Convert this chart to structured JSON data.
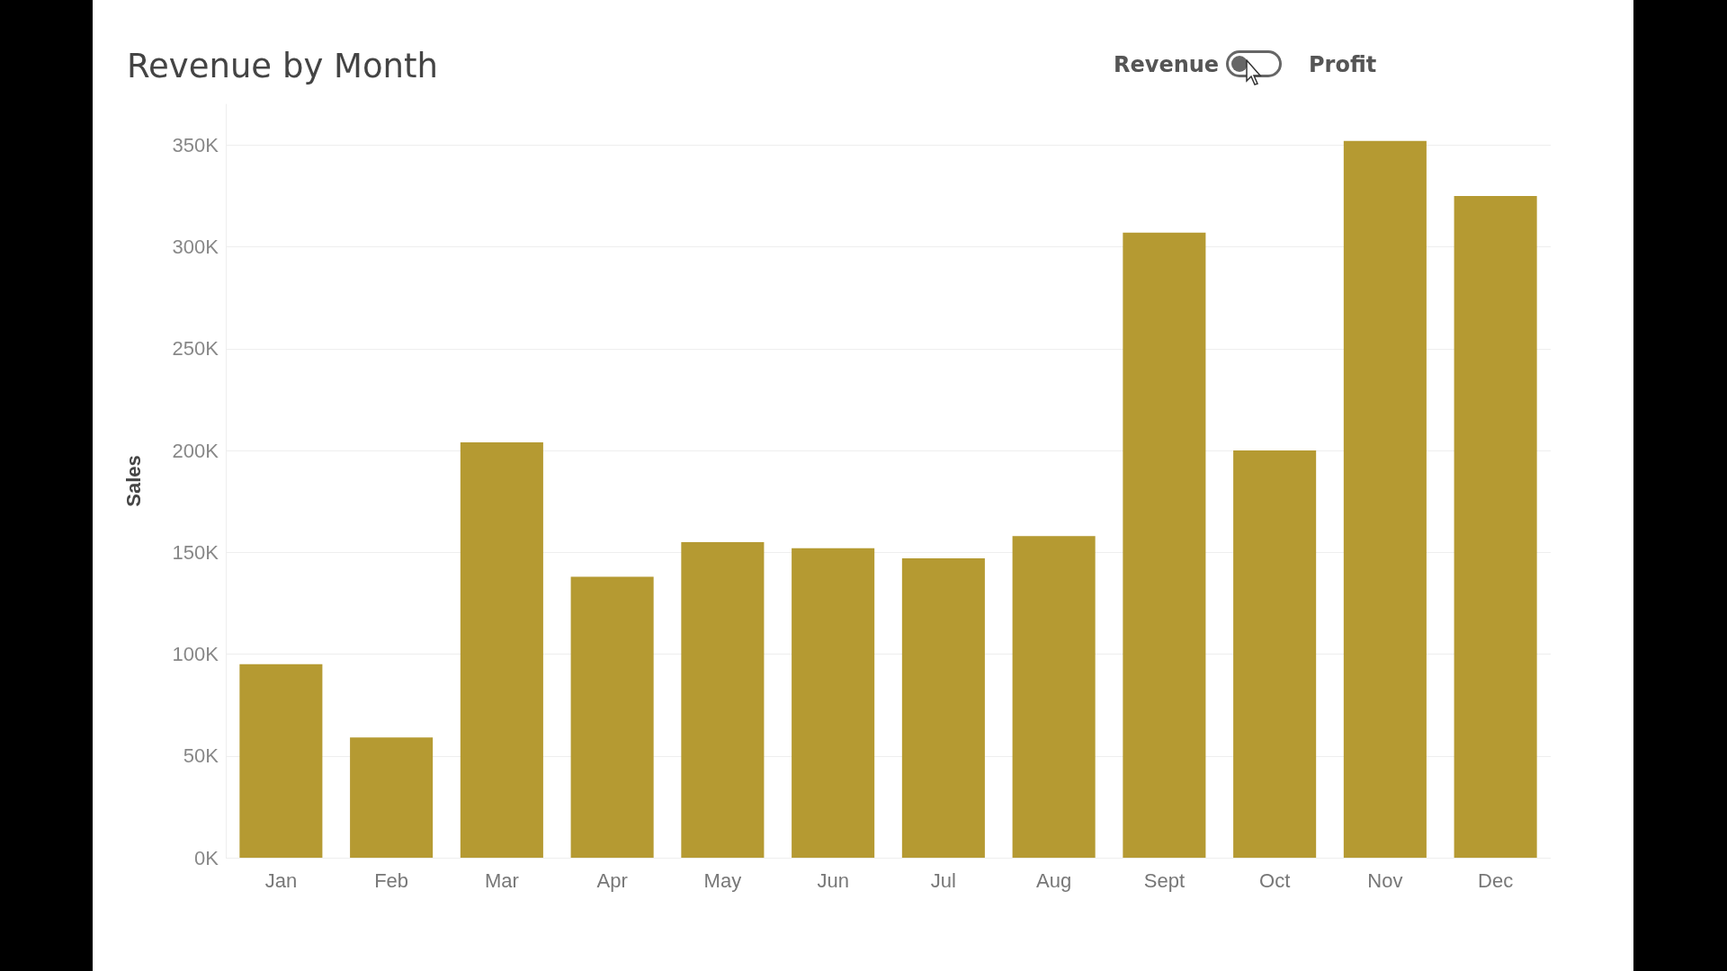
{
  "chart_data": {
    "type": "bar",
    "title": "Revenue by Month",
    "ylabel": "Sales",
    "annotations": [
      "Revenue",
      "Profit"
    ],
    "categories": [
      "Jan",
      "Feb",
      "Mar",
      "Apr",
      "May",
      "Jun",
      "Jul",
      "Aug",
      "Sept",
      "Oct",
      "Nov",
      "Dec"
    ],
    "values": [
      95000,
      59000,
      204000,
      138000,
      155000,
      152000,
      147000,
      158000,
      307000,
      200000,
      352000,
      325000
    ],
    "color": "#b59a32",
    "ylim": [
      0,
      370000
    ],
    "yticks": [
      {
        "value": 0,
        "label": "0K"
      },
      {
        "value": 50000,
        "label": "50K"
      },
      {
        "value": 100000,
        "label": "100K"
      },
      {
        "value": 150000,
        "label": "150K"
      },
      {
        "value": 200000,
        "label": "200K"
      },
      {
        "value": 250000,
        "label": "250K"
      },
      {
        "value": 300000,
        "label": "300K"
      },
      {
        "value": 350000,
        "label": "350K"
      }
    ],
    "grid": "y"
  }
}
